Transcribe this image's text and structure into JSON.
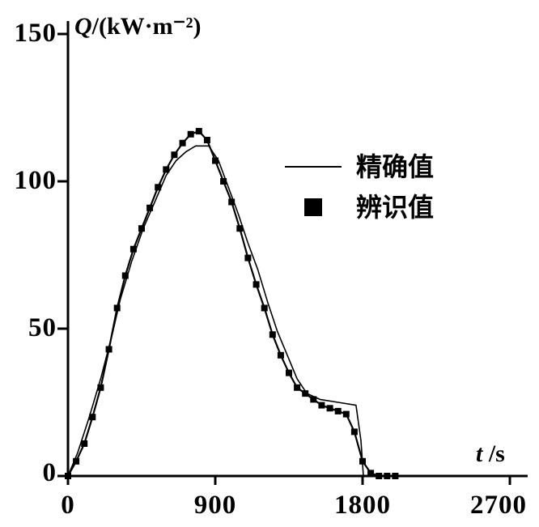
{
  "chart_data": {
    "type": "line",
    "title_symbol": "Q",
    "title_unit": "/(kW·m⁻²)",
    "xlabel_symbol": "t",
    "xlabel_unit": " /s",
    "x_range": [
      0,
      2700
    ],
    "y_range": [
      0,
      150
    ],
    "xticks": [
      0,
      900,
      1800,
      2700
    ],
    "yticks": [
      0,
      50,
      100,
      150
    ],
    "grid": false,
    "legend_position": "center-right",
    "legend": [
      {
        "label": "精确值",
        "style": "line"
      },
      {
        "label": "辨识值",
        "style": "square"
      }
    ],
    "series": [
      {
        "name": "精确值",
        "type": "line",
        "color": "#000000",
        "points": [
          [
            0,
            0
          ],
          [
            60,
            8
          ],
          [
            130,
            20
          ],
          [
            200,
            33
          ],
          [
            270,
            48
          ],
          [
            320,
            60
          ],
          [
            390,
            73
          ],
          [
            460,
            84
          ],
          [
            530,
            93
          ],
          [
            600,
            102
          ],
          [
            660,
            107
          ],
          [
            720,
            110
          ],
          [
            780,
            112
          ],
          [
            860,
            112
          ],
          [
            920,
            107
          ],
          [
            980,
            98
          ],
          [
            1040,
            89
          ],
          [
            1100,
            79
          ],
          [
            1160,
            70
          ],
          [
            1220,
            59
          ],
          [
            1280,
            49
          ],
          [
            1340,
            41
          ],
          [
            1400,
            33
          ],
          [
            1460,
            28
          ],
          [
            1540,
            26
          ],
          [
            1650,
            25
          ],
          [
            1760,
            24
          ],
          [
            1790,
            12
          ],
          [
            1805,
            0
          ]
        ]
      },
      {
        "name": "辨识值",
        "type": "markers-line",
        "color": "#000000",
        "points": [
          [
            0,
            0
          ],
          [
            50,
            5
          ],
          [
            100,
            11
          ],
          [
            150,
            20
          ],
          [
            200,
            30
          ],
          [
            250,
            43
          ],
          [
            300,
            57
          ],
          [
            350,
            68
          ],
          [
            400,
            77
          ],
          [
            450,
            84
          ],
          [
            500,
            91
          ],
          [
            550,
            98
          ],
          [
            600,
            104
          ],
          [
            650,
            109
          ],
          [
            700,
            113
          ],
          [
            750,
            116
          ],
          [
            800,
            117
          ],
          [
            850,
            114
          ],
          [
            900,
            107
          ],
          [
            950,
            100
          ],
          [
            1000,
            93
          ],
          [
            1050,
            84
          ],
          [
            1100,
            74
          ],
          [
            1150,
            65
          ],
          [
            1200,
            57
          ],
          [
            1250,
            48
          ],
          [
            1300,
            41
          ],
          [
            1350,
            35
          ],
          [
            1400,
            30
          ],
          [
            1450,
            28
          ],
          [
            1500,
            26
          ],
          [
            1550,
            24
          ],
          [
            1600,
            23
          ],
          [
            1650,
            22
          ],
          [
            1700,
            21
          ],
          [
            1750,
            15
          ],
          [
            1800,
            5
          ],
          [
            1850,
            1
          ],
          [
            1900,
            0
          ],
          [
            1950,
            0
          ],
          [
            2000,
            0
          ]
        ]
      }
    ]
  }
}
